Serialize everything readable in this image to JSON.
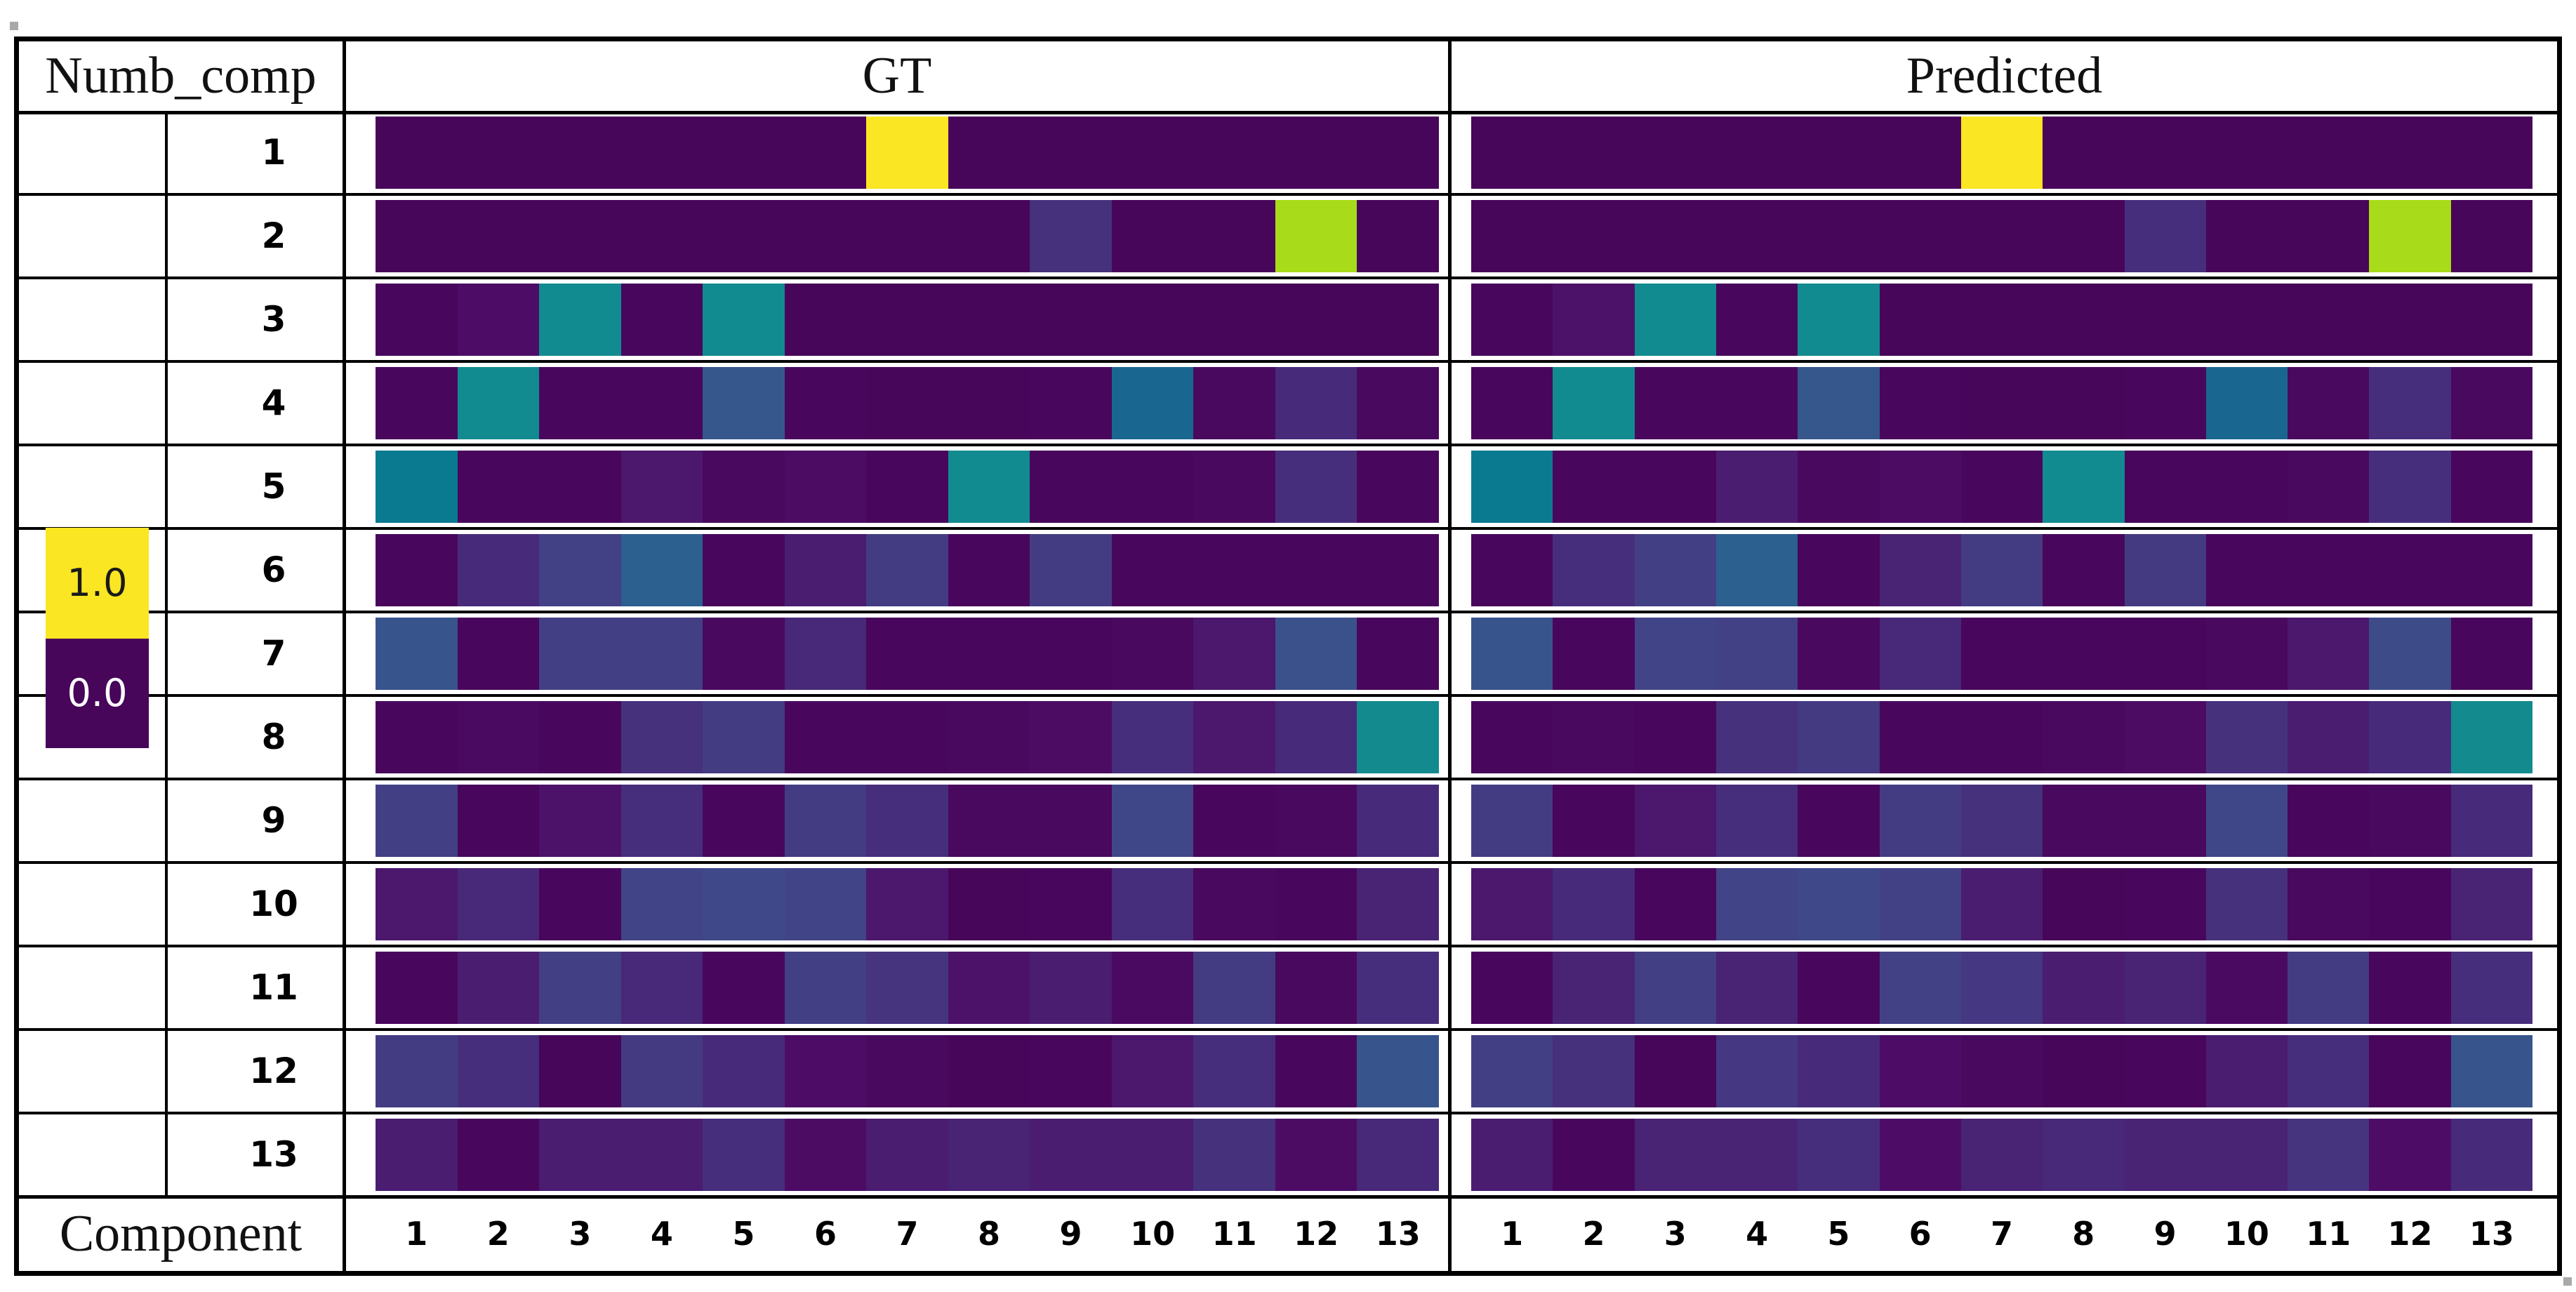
{
  "header": {
    "numb_comp": "Numb_comp",
    "gt": "GT",
    "predicted": "Predicted"
  },
  "bottom": {
    "component": "Component"
  },
  "legend": {
    "high_label": "1.0",
    "low_label": "0.0",
    "high_value": 1.0,
    "low_value": 0.0
  },
  "row_labels": [
    "1",
    "2",
    "3",
    "4",
    "5",
    "6",
    "7",
    "8",
    "9",
    "10",
    "11",
    "12",
    "13"
  ],
  "col_labels": [
    "1",
    "2",
    "3",
    "4",
    "5",
    "6",
    "7",
    "8",
    "9",
    "10",
    "11",
    "12",
    "13"
  ],
  "colors": {
    "background": "#ffffff",
    "border": "#000000",
    "viridis_stops": [
      [
        0.0,
        "#470659"
      ],
      [
        0.05,
        "#4d0d66"
      ],
      [
        0.1,
        "#482878"
      ],
      [
        0.15,
        "#453781"
      ],
      [
        0.2,
        "#414487"
      ],
      [
        0.25,
        "#3b518b"
      ],
      [
        0.3,
        "#2c608e"
      ],
      [
        0.35,
        "#0d6b92"
      ],
      [
        0.4,
        "#0a7a90"
      ],
      [
        0.45,
        "#128a8e"
      ],
      [
        0.5,
        "#0d9092"
      ],
      [
        0.6,
        "#27ad81"
      ],
      [
        0.7,
        "#5cc863"
      ],
      [
        0.8,
        "#a8db19"
      ],
      [
        0.9,
        "#dfe318"
      ],
      [
        1.0,
        "#fae622"
      ]
    ]
  },
  "chart_data": {
    "type": "heatmap",
    "title": "GT vs Predicted component activation per number of components",
    "rows_axis_label": "Numb_comp",
    "cols_axis_label": "Component",
    "colormap": "viridis",
    "value_range": [
      0,
      1
    ],
    "rows": [
      1,
      2,
      3,
      4,
      5,
      6,
      7,
      8,
      9,
      10,
      11,
      12,
      13
    ],
    "columns": [
      1,
      2,
      3,
      4,
      5,
      6,
      7,
      8,
      9,
      10,
      11,
      12,
      13
    ],
    "legend_position": "left",
    "panels": [
      {
        "name": "GT",
        "matrix": [
          [
            0,
            0,
            0,
            0,
            0,
            0,
            1,
            0,
            0,
            0,
            0,
            0,
            0
          ],
          [
            0,
            0,
            0,
            0,
            0,
            0,
            0,
            0,
            0.13,
            0,
            0,
            0.8,
            0
          ],
          [
            0.01,
            0.05,
            0.46,
            0.01,
            0.46,
            0,
            0,
            0,
            0,
            0,
            0,
            0,
            0
          ],
          [
            0.01,
            0.46,
            0.01,
            0.01,
            0.27,
            0.01,
            0,
            0,
            0.01,
            0.33,
            0.02,
            0.11,
            0.02
          ],
          [
            0.4,
            0.01,
            0.01,
            0.07,
            0.02,
            0.04,
            0.01,
            0.46,
            0.01,
            0.01,
            0.02,
            0.12,
            0.01
          ],
          [
            0.01,
            0.11,
            0.19,
            0.3,
            0.01,
            0.08,
            0.17,
            0.01,
            0.17,
            0.01,
            0.01,
            0.01,
            0.01
          ],
          [
            0.26,
            0.01,
            0.18,
            0.18,
            0.02,
            0.1,
            0.01,
            0.01,
            0.01,
            0.02,
            0.07,
            0.25,
            0.01
          ],
          [
            0.01,
            0.03,
            0.01,
            0.13,
            0.17,
            0.01,
            0.01,
            0.02,
            0.04,
            0.12,
            0.07,
            0.11,
            0.45
          ],
          [
            0.18,
            0.01,
            0.06,
            0.12,
            0.01,
            0.17,
            0.12,
            0.02,
            0.02,
            0.21,
            0.01,
            0.02,
            0.11
          ],
          [
            0.07,
            0.1,
            0.01,
            0.2,
            0.22,
            0.2,
            0.07,
            0,
            0.01,
            0.12,
            0.02,
            0.01,
            0.09
          ],
          [
            0.01,
            0.08,
            0.18,
            0.1,
            0.01,
            0.18,
            0.14,
            0.06,
            0.08,
            0.03,
            0.17,
            0.02,
            0.12
          ],
          [
            0.17,
            0.12,
            0,
            0.16,
            0.11,
            0.05,
            0.02,
            0,
            0.01,
            0.07,
            0.12,
            0.01,
            0.26
          ],
          [
            0.08,
            0.01,
            0.08,
            0.08,
            0.12,
            0.04,
            0.08,
            0.09,
            0.08,
            0.08,
            0.13,
            0.04,
            0.1
          ]
        ]
      },
      {
        "name": "Predicted",
        "matrix": [
          [
            0,
            0,
            0,
            0,
            0,
            0,
            1,
            0,
            0,
            0,
            0,
            0,
            0
          ],
          [
            0,
            0,
            0,
            0,
            0,
            0,
            0,
            0,
            0.12,
            0,
            0,
            0.8,
            0
          ],
          [
            0.01,
            0.06,
            0.46,
            0.01,
            0.46,
            0,
            0,
            0,
            0,
            0,
            0,
            0,
            0
          ],
          [
            0.01,
            0.46,
            0.01,
            0.01,
            0.27,
            0.01,
            0,
            0,
            0.01,
            0.33,
            0.02,
            0.12,
            0.02
          ],
          [
            0.4,
            0.01,
            0.01,
            0.08,
            0.02,
            0.04,
            0.01,
            0.46,
            0.01,
            0.01,
            0.02,
            0.12,
            0.01
          ],
          [
            0.01,
            0.12,
            0.18,
            0.3,
            0.01,
            0.09,
            0.17,
            0.01,
            0.16,
            0.01,
            0.01,
            0.01,
            0.01
          ],
          [
            0.26,
            0.01,
            0.2,
            0.19,
            0.02,
            0.1,
            0.01,
            0.01,
            0.01,
            0.02,
            0.07,
            0.23,
            0.01
          ],
          [
            0.01,
            0.02,
            0.01,
            0.13,
            0.16,
            0.01,
            0.01,
            0.02,
            0.04,
            0.13,
            0.08,
            0.11,
            0.45
          ],
          [
            0.17,
            0.01,
            0.07,
            0.12,
            0.01,
            0.17,
            0.13,
            0.02,
            0.02,
            0.21,
            0.01,
            0.02,
            0.11
          ],
          [
            0.07,
            0.11,
            0.01,
            0.2,
            0.22,
            0.19,
            0.08,
            0,
            0.01,
            0.13,
            0.02,
            0.01,
            0.09
          ],
          [
            0.01,
            0.09,
            0.18,
            0.09,
            0.01,
            0.19,
            0.15,
            0.08,
            0.09,
            0.03,
            0.17,
            0.01,
            0.12
          ],
          [
            0.18,
            0.13,
            0,
            0.15,
            0.11,
            0.05,
            0.02,
            0,
            0.01,
            0.08,
            0.12,
            0.01,
            0.26
          ],
          [
            0.08,
            0.01,
            0.09,
            0.09,
            0.12,
            0.05,
            0.09,
            0.1,
            0.09,
            0.09,
            0.14,
            0.05,
            0.11
          ]
        ]
      }
    ]
  }
}
